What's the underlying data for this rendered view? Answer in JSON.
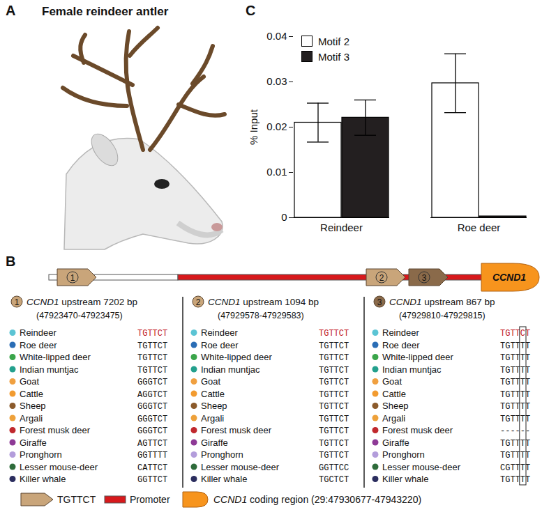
{
  "panel_letters": [
    "A",
    "B",
    "C"
  ],
  "panel_a": {
    "title": "Female reindeer antler"
  },
  "panel_b": {
    "gene": "CCND1",
    "promoter_color": "#d7191c",
    "gene_color": "#f7941d",
    "species": [
      {
        "name": "Reindeer",
        "color": "#5bc4d4",
        "sequence_color": "#c0141c"
      },
      {
        "name": "Roe deer",
        "color": "#2a6db5"
      },
      {
        "name": "White-lipped deer",
        "color": "#3aa54a"
      },
      {
        "name": "Indian muntjac",
        "color": "#23a08d"
      },
      {
        "name": "Goat",
        "color": "#f0a040"
      },
      {
        "name": "Cattle",
        "color": "#f29b30"
      },
      {
        "name": "Sheep",
        "color": "#8b5a2b"
      },
      {
        "name": "Argali",
        "color": "#eea13a"
      },
      {
        "name": "Forest musk deer",
        "color": "#c0282d"
      },
      {
        "name": "Giraffe",
        "color": "#8e3a96"
      },
      {
        "name": "Pronghorn",
        "color": "#b39ddb"
      },
      {
        "name": "Lesser mouse-deer",
        "color": "#2e6b3a"
      },
      {
        "name": "Killer whale",
        "color": "#2b2d5e"
      }
    ],
    "motifs": [
      {
        "number": "1",
        "color": "#c9a57a",
        "label": "CCND1 upstream 7202 bp",
        "coords": "(47923470-47923475)",
        "sequences": [
          "TGTTCT",
          "TGTTCT",
          "TGTTCT",
          "TGTTCT",
          "GGGTCT",
          "AGGTCT",
          "GGGTCT",
          "GGGTCT",
          "GGGTCT",
          "AGTTCT",
          "GGTTTT",
          "CATTCT",
          "GGTTCT"
        ]
      },
      {
        "number": "2",
        "color": "#c9a57a",
        "label": "CCND1 upstream 1094 bp",
        "coords": "(47929578-47929583)",
        "sequences": [
          "TGTTCT",
          "TGTTCT",
          "TGTTCT",
          "TGTTCT",
          "TGTTCT",
          "TGTTCT",
          "TGTTCT",
          "TGTTCT",
          "TGTTCT",
          "TGTTCT",
          "TGTTCT",
          "GGTTCC",
          "TGCTCT"
        ]
      },
      {
        "number": "3",
        "color": "#8a6a4a",
        "label": "CCND1 upstream 867 bp",
        "coords": "(47929810-47929815)",
        "highlight_position": 5,
        "sequences": [
          "TGTTCT",
          "TGTTTT",
          "TGTTTT",
          "TGTTTT",
          "TGTTTT",
          "TGTTTT",
          "TGTTTT",
          "TGTTTT",
          "------",
          "TGTTTT",
          "TGTTTT",
          "CGTTTT",
          "TGTTTT"
        ]
      }
    ],
    "legend_items": [
      {
        "label": "TGTTCT"
      },
      {
        "label": "Promoter"
      },
      {
        "label": "CCND1 coding region (29:47930677-47943220)"
      }
    ]
  },
  "chart_data": {
    "type": "bar",
    "categories": [
      "Reindeer",
      "Roe deer"
    ],
    "series": [
      {
        "name": "Motif 2",
        "color": "#ffffff",
        "values": [
          0.021,
          0.0297
        ],
        "errors": [
          0.0043,
          0.0065
        ]
      },
      {
        "name": "Motif 3",
        "color": "#231f20",
        "values": [
          0.0221,
          0.0003
        ],
        "errors": [
          0.0039,
          0
        ]
      }
    ],
    "ylabel": "% Input",
    "ylim": [
      0,
      0.04
    ],
    "yticks": [
      0,
      0.01,
      0.02,
      0.03,
      0.04
    ],
    "legend": "top-left"
  }
}
